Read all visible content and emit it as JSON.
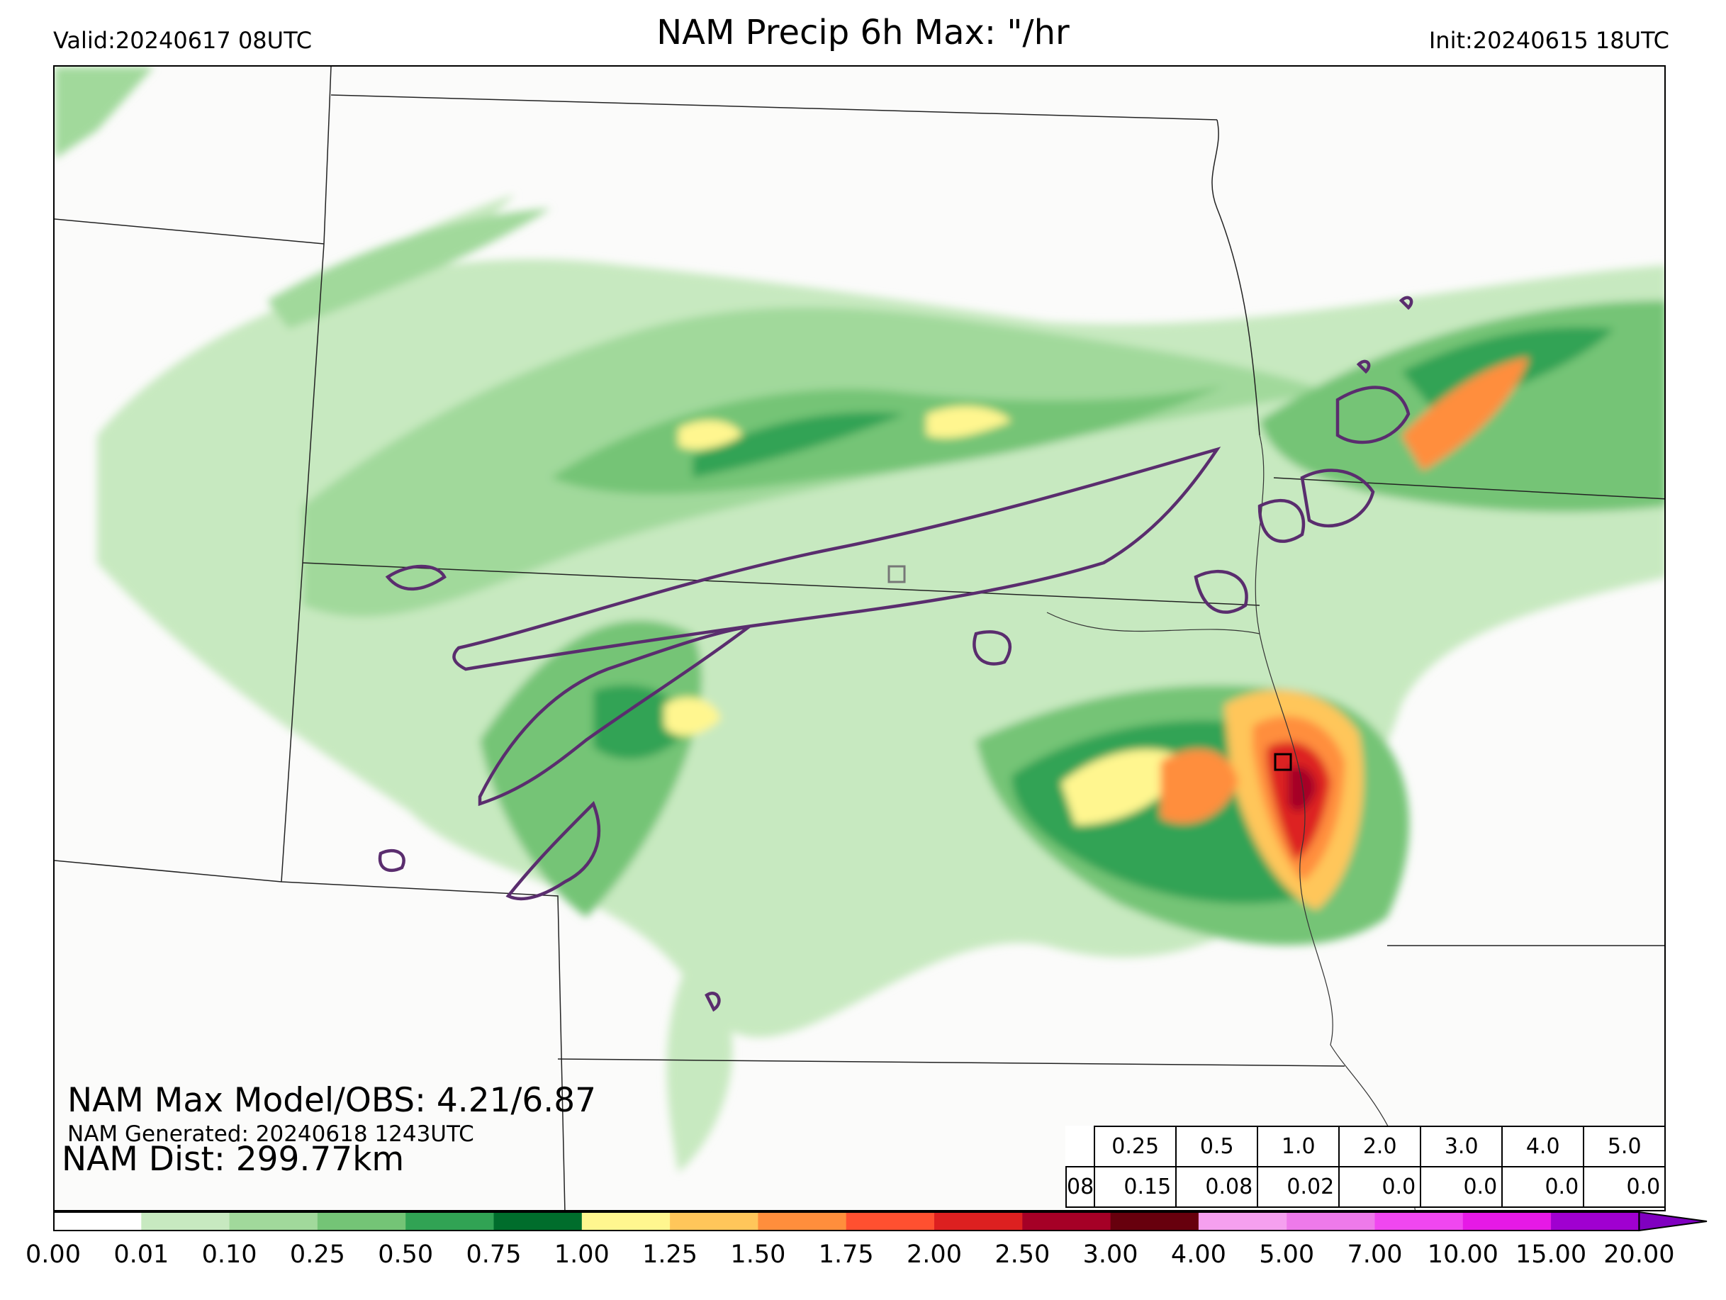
{
  "header": {
    "title": "NAM Precip 6h Max: \"/hr",
    "valid": "Valid:20240617 08UTC",
    "init": "Init:20240615 18UTC"
  },
  "stats": {
    "max_model_obs": "NAM Max Model/OBS: 4.21/6.87",
    "generated": "NAM Generated: 20240618 1243UTC",
    "distance": "NAM Dist: 299.77km"
  },
  "threshold_table": {
    "hour_label": "08",
    "thresholds": [
      "0.25",
      "0.5",
      "1.0",
      "2.0",
      "3.0",
      "4.0",
      "5.0"
    ],
    "scores": [
      "0.15",
      "0.08",
      "0.02",
      "0.0",
      "0.0",
      "0.0",
      "0.0"
    ]
  },
  "colorbar": {
    "ticks": [
      "0.00",
      "0.01",
      "0.10",
      "0.25",
      "0.50",
      "0.75",
      "1.00",
      "1.25",
      "1.50",
      "1.75",
      "2.00",
      "2.50",
      "3.00",
      "4.00",
      "5.00",
      "7.00",
      "10.00",
      "15.00",
      "20.00"
    ],
    "colors": [
      "#ffffff",
      "#c7e9c0",
      "#a1d99b",
      "#74c476",
      "#31a354",
      "#006d2c",
      "#fff68f",
      "#ffc65a",
      "#ff8e3c",
      "#ff5030",
      "#dd2020",
      "#a50026",
      "#67000d",
      "#f5a0ef",
      "#ee7aea",
      "#f047f0",
      "#e619e6",
      "#a000d0"
    ],
    "extend_color": "#8000c0"
  },
  "colors": {
    "observed_contour": "#5a2d6e",
    "borders": "#222222",
    "rivers": "#333333"
  }
}
